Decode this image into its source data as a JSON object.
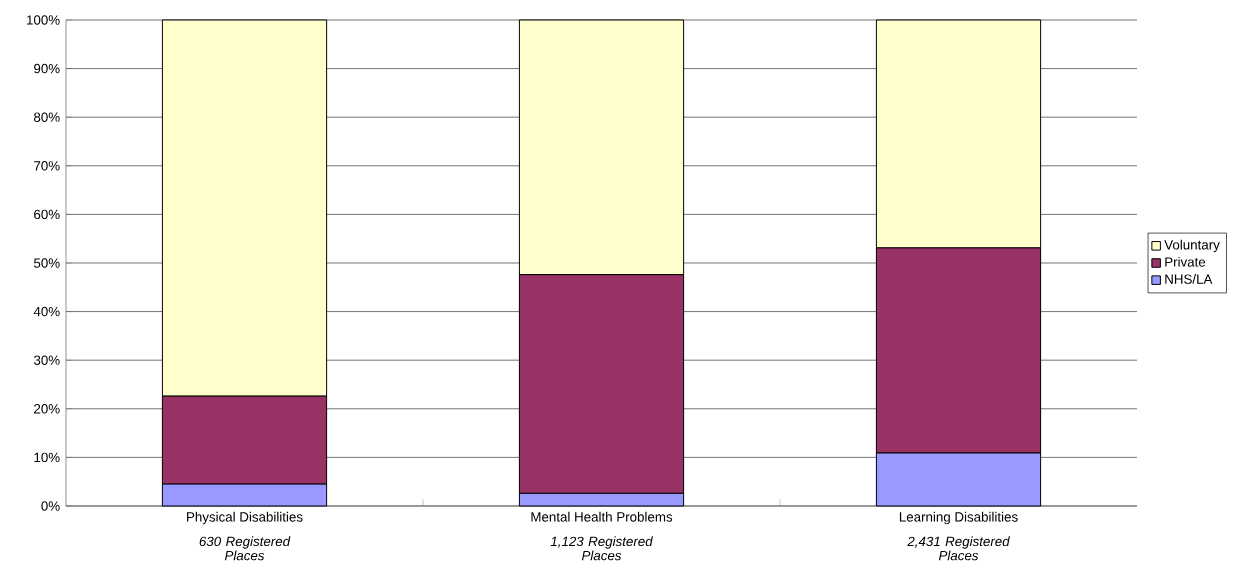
{
  "chart_data": {
    "type": "bar",
    "stacked": true,
    "categories": [
      "Physical Disabilities",
      "Mental Health Problems",
      "Learning Disabilities"
    ],
    "series": [
      {
        "name": "NHS/LA",
        "color": "#9999ff",
        "values": [
          4.5,
          2.6,
          10.9
        ]
      },
      {
        "name": "Private",
        "color": "#993366",
        "values": [
          18.1,
          45.0,
          42.2
        ]
      },
      {
        "name": "Voluntary",
        "color": "#ffffcc",
        "values": [
          77.4,
          52.4,
          46.9
        ]
      }
    ],
    "ylim": [
      0,
      100
    ],
    "yticks": [
      {
        "value": 0,
        "label": "0%"
      },
      {
        "value": 10,
        "label": "10%"
      },
      {
        "value": 20,
        "label": "20%"
      },
      {
        "value": 30,
        "label": "30%"
      },
      {
        "value": 40,
        "label": "40%"
      },
      {
        "value": 50,
        "label": "50%"
      },
      {
        "value": 60,
        "label": "60%"
      },
      {
        "value": 70,
        "label": "70%"
      },
      {
        "value": 80,
        "label": "80%"
      },
      {
        "value": 90,
        "label": "90%"
      },
      {
        "value": 100,
        "label": "100%"
      }
    ],
    "grid": "y",
    "legend": "right",
    "annotations": [
      "630 Registered Places",
      "1,123 Registered Places",
      "2,431 Registered Places"
    ]
  }
}
